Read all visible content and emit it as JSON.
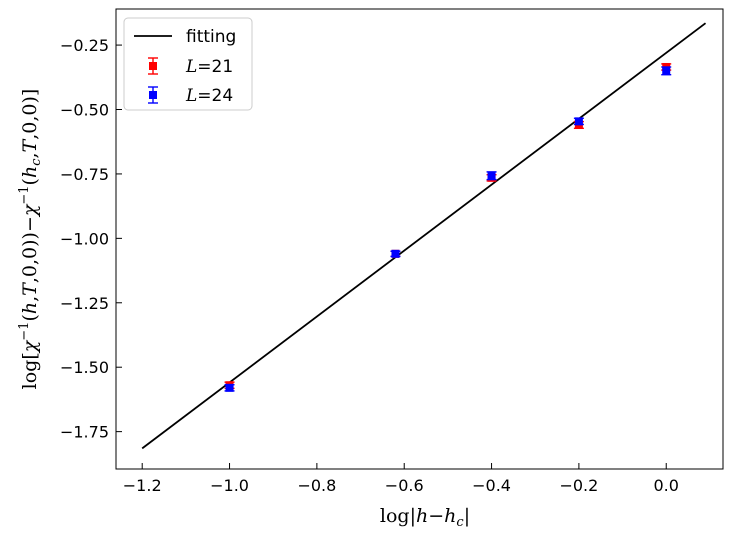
{
  "chart_data": {
    "type": "scatter",
    "xlabel": "log|h−h_c|",
    "ylabel": "log[χ^{−1}(h,T,0,0))−χ^{−1}(h_c,T,0,0)]",
    "xlim": [
      -1.26,
      0.13
    ],
    "ylim": [
      -1.895,
      -0.11
    ],
    "x_ticks": [
      -1.2,
      -1.0,
      -0.8,
      -0.6,
      -0.4,
      -0.2,
      0.0
    ],
    "x_tick_labels": [
      "−1.2",
      "−1.0",
      "−0.8",
      "−0.6",
      "−0.4",
      "−0.2",
      "0.0"
    ],
    "y_ticks": [
      -0.25,
      -0.5,
      -0.75,
      -1.0,
      -1.25,
      -1.5,
      -1.75
    ],
    "y_tick_labels": [
      "−0.25",
      "−0.50",
      "−0.75",
      "−1.00",
      "−1.25",
      "−1.50",
      "−1.75"
    ],
    "grid": false,
    "legend_position": "top-left",
    "fit_line": {
      "name": "fitting",
      "color": "#000000",
      "x": [
        -1.2,
        0.09
      ],
      "y": [
        -1.815,
        -0.165
      ]
    },
    "series": [
      {
        "name": "L=21",
        "legend_var": "L",
        "legend_eq": "=",
        "legend_value": "21",
        "color": "#ff0000",
        "x": [
          -1.0,
          -0.62,
          -0.4,
          -0.2,
          0.0
        ],
        "y": [
          -1.57,
          -1.06,
          -0.765,
          -0.56,
          -0.335
        ],
        "yerr": [
          0.012,
          0.01,
          0.012,
          0.013,
          0.012
        ]
      },
      {
        "name": "L=24",
        "legend_var": "L",
        "legend_eq": "=",
        "legend_value": "24",
        "color": "#0000ff",
        "x": [
          -1.0,
          -0.62,
          -0.4,
          -0.2,
          0.0
        ],
        "y": [
          -1.58,
          -1.06,
          -0.757,
          -0.546,
          -0.35
        ],
        "yerr": [
          0.012,
          0.01,
          0.015,
          0.012,
          0.015
        ]
      }
    ]
  }
}
